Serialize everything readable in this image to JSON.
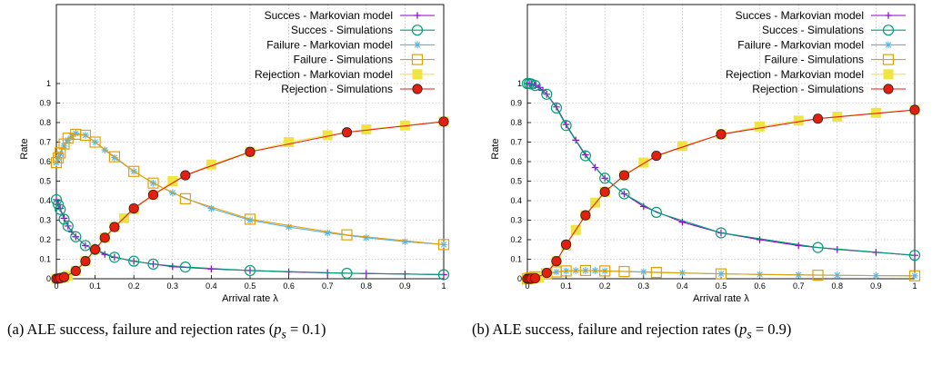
{
  "chart_data": [
    {
      "type": "line",
      "xlabel": "Arrival rate λ",
      "ylabel": "Rate",
      "xlim": [
        0,
        1
      ],
      "ylim": [
        0,
        1
      ],
      "xticks": [
        "0",
        "0.1",
        "0.2",
        "0.3",
        "0.4",
        "0.5",
        "0.6",
        "0.7",
        "0.8",
        "0.9",
        "1"
      ],
      "yticks": [
        "0",
        "0.1",
        "0.2",
        "0.3",
        "0.4",
        "0.5",
        "0.6",
        "0.7",
        "0.8",
        "0.9",
        "1"
      ],
      "grid": true,
      "legend_position": "top-right",
      "caption": "(a) ALE success, failure and rejection rates (p_s = 0.1)",
      "series": [
        {
          "name": "Succes - Markovian model",
          "color": "#9400d3",
          "marker": "plus",
          "x": [
            0,
            0.005,
            0.01,
            0.02,
            0.03,
            0.04,
            0.05,
            0.075,
            0.1,
            0.125,
            0.15,
            0.2,
            0.25,
            0.3,
            0.4,
            0.5,
            0.6,
            0.7,
            0.8,
            0.9,
            1.0
          ],
          "y": [
            0.405,
            0.38,
            0.36,
            0.31,
            0.27,
            0.24,
            0.215,
            0.17,
            0.15,
            0.125,
            0.11,
            0.09,
            0.075,
            0.062,
            0.05,
            0.042,
            0.035,
            0.03,
            0.027,
            0.024,
            0.021
          ]
        },
        {
          "name": "Succes - Simulations",
          "color": "#009e73",
          "marker": "circle",
          "x": [
            0,
            0.005,
            0.01,
            0.02,
            0.03,
            0.05,
            0.075,
            0.1,
            0.15,
            0.2,
            0.25,
            0.333,
            0.5,
            0.75,
            1.0
          ],
          "y": [
            0.405,
            0.38,
            0.355,
            0.305,
            0.27,
            0.215,
            0.17,
            0.15,
            0.11,
            0.09,
            0.075,
            0.06,
            0.042,
            0.028,
            0.021
          ]
        },
        {
          "name": "Failure - Markovian model",
          "color": "#56b4e9",
          "marker": "star",
          "x": [
            0,
            0.005,
            0.01,
            0.02,
            0.03,
            0.04,
            0.05,
            0.075,
            0.1,
            0.125,
            0.15,
            0.2,
            0.25,
            0.3,
            0.4,
            0.5,
            0.6,
            0.7,
            0.8,
            0.9,
            1.0
          ],
          "y": [
            0.595,
            0.62,
            0.64,
            0.68,
            0.71,
            0.73,
            0.745,
            0.735,
            0.7,
            0.66,
            0.62,
            0.55,
            0.49,
            0.44,
            0.36,
            0.3,
            0.265,
            0.235,
            0.21,
            0.19,
            0.175
          ]
        },
        {
          "name": "Failure - Simulations",
          "color": "#e69f00",
          "marker": "square-open",
          "x": [
            0,
            0.005,
            0.01,
            0.02,
            0.03,
            0.05,
            0.075,
            0.1,
            0.15,
            0.2,
            0.25,
            0.333,
            0.5,
            0.75,
            1.0
          ],
          "y": [
            0.595,
            0.62,
            0.645,
            0.69,
            0.72,
            0.74,
            0.735,
            0.7,
            0.625,
            0.55,
            0.49,
            0.41,
            0.305,
            0.225,
            0.175
          ]
        },
        {
          "name": "Rejection - Markovian model",
          "color": "#f0e442",
          "marker": "square-filled",
          "x": [
            0,
            0.01,
            0.02,
            0.03,
            0.05,
            0.075,
            0.1,
            0.125,
            0.15,
            0.175,
            0.2,
            0.25,
            0.3,
            0.4,
            0.5,
            0.6,
            0.7,
            0.8,
            0.9,
            1.0
          ],
          "y": [
            0,
            0.002,
            0.006,
            0.015,
            0.04,
            0.09,
            0.15,
            0.21,
            0.265,
            0.31,
            0.355,
            0.43,
            0.5,
            0.585,
            0.65,
            0.7,
            0.735,
            0.765,
            0.785,
            0.805
          ]
        },
        {
          "name": "Rejection - Simulations",
          "color": "#e51e10",
          "marker": "circle-filled",
          "x": [
            0,
            0.005,
            0.01,
            0.02,
            0.05,
            0.075,
            0.1,
            0.125,
            0.15,
            0.2,
            0.25,
            0.333,
            0.5,
            0.75,
            1.0
          ],
          "y": [
            0,
            0.001,
            0.003,
            0.008,
            0.04,
            0.09,
            0.15,
            0.21,
            0.265,
            0.36,
            0.43,
            0.53,
            0.65,
            0.75,
            0.805
          ]
        }
      ]
    },
    {
      "type": "line",
      "xlabel": "Arrival rate λ",
      "ylabel": "Rate",
      "xlim": [
        0,
        1
      ],
      "ylim": [
        0,
        1
      ],
      "xticks": [
        "0",
        "0.1",
        "0.2",
        "0.3",
        "0.4",
        "0.5",
        "0.6",
        "0.7",
        "0.8",
        "0.9",
        "1"
      ],
      "yticks": [
        "0",
        "0.1",
        "0.2",
        "0.3",
        "0.4",
        "0.5",
        "0.6",
        "0.7",
        "0.8",
        "0.9",
        "1"
      ],
      "grid": true,
      "legend_position": "top-right",
      "caption": "(b) ALE success, failure and rejection rates (p_s = 0.9)",
      "series": [
        {
          "name": "Succes - Markovian model",
          "color": "#9400d3",
          "marker": "plus",
          "x": [
            0,
            0.005,
            0.01,
            0.02,
            0.03,
            0.04,
            0.05,
            0.075,
            0.1,
            0.125,
            0.15,
            0.175,
            0.2,
            0.25,
            0.3,
            0.4,
            0.5,
            0.6,
            0.7,
            0.8,
            0.9,
            1.0
          ],
          "y": [
            1.0,
            1.0,
            0.998,
            0.99,
            0.98,
            0.965,
            0.945,
            0.88,
            0.79,
            0.71,
            0.635,
            0.57,
            0.515,
            0.435,
            0.37,
            0.29,
            0.235,
            0.2,
            0.17,
            0.15,
            0.135,
            0.12
          ]
        },
        {
          "name": "Succes - Simulations",
          "color": "#009e73",
          "marker": "circle",
          "x": [
            0,
            0.005,
            0.01,
            0.02,
            0.05,
            0.075,
            0.1,
            0.15,
            0.2,
            0.25,
            0.333,
            0.5,
            0.75,
            1.0
          ],
          "y": [
            1.0,
            1.0,
            0.998,
            0.99,
            0.945,
            0.875,
            0.785,
            0.63,
            0.515,
            0.435,
            0.34,
            0.235,
            0.16,
            0.12
          ]
        },
        {
          "name": "Failure - Markovian model",
          "color": "#56b4e9",
          "marker": "star",
          "x": [
            0,
            0.005,
            0.01,
            0.02,
            0.03,
            0.05,
            0.075,
            0.1,
            0.125,
            0.15,
            0.175,
            0.2,
            0.3,
            0.4,
            0.5,
            0.6,
            0.7,
            0.8,
            0.9,
            1.0
          ],
          "y": [
            0,
            0.002,
            0.005,
            0.01,
            0.015,
            0.025,
            0.035,
            0.04,
            0.042,
            0.042,
            0.042,
            0.04,
            0.035,
            0.03,
            0.025,
            0.022,
            0.02,
            0.018,
            0.016,
            0.015
          ]
        },
        {
          "name": "Failure - Simulations",
          "color": "#e69f00",
          "marker": "square-open",
          "x": [
            0,
            0.005,
            0.01,
            0.02,
            0.05,
            0.075,
            0.1,
            0.15,
            0.2,
            0.25,
            0.333,
            0.5,
            0.75,
            1.0
          ],
          "y": [
            0,
            0.002,
            0.005,
            0.01,
            0.025,
            0.035,
            0.04,
            0.042,
            0.04,
            0.037,
            0.032,
            0.025,
            0.018,
            0.015
          ]
        },
        {
          "name": "Rejection - Markovian model",
          "color": "#f0e442",
          "marker": "square-filled",
          "x": [
            0,
            0.01,
            0.02,
            0.03,
            0.05,
            0.075,
            0.1,
            0.125,
            0.15,
            0.175,
            0.2,
            0.25,
            0.3,
            0.4,
            0.5,
            0.6,
            0.7,
            0.8,
            0.9,
            1.0
          ],
          "y": [
            0,
            0.001,
            0.003,
            0.007,
            0.03,
            0.09,
            0.17,
            0.25,
            0.325,
            0.39,
            0.445,
            0.53,
            0.595,
            0.68,
            0.74,
            0.78,
            0.81,
            0.83,
            0.85,
            0.865
          ]
        },
        {
          "name": "Rejection - Simulations",
          "color": "#e51e10",
          "marker": "circle-filled",
          "x": [
            0,
            0.005,
            0.01,
            0.02,
            0.05,
            0.075,
            0.1,
            0.15,
            0.2,
            0.25,
            0.333,
            0.5,
            0.75,
            1.0
          ],
          "y": [
            0,
            0.0,
            0.001,
            0.003,
            0.03,
            0.09,
            0.175,
            0.325,
            0.445,
            0.53,
            0.63,
            0.74,
            0.82,
            0.865
          ]
        }
      ]
    }
  ]
}
